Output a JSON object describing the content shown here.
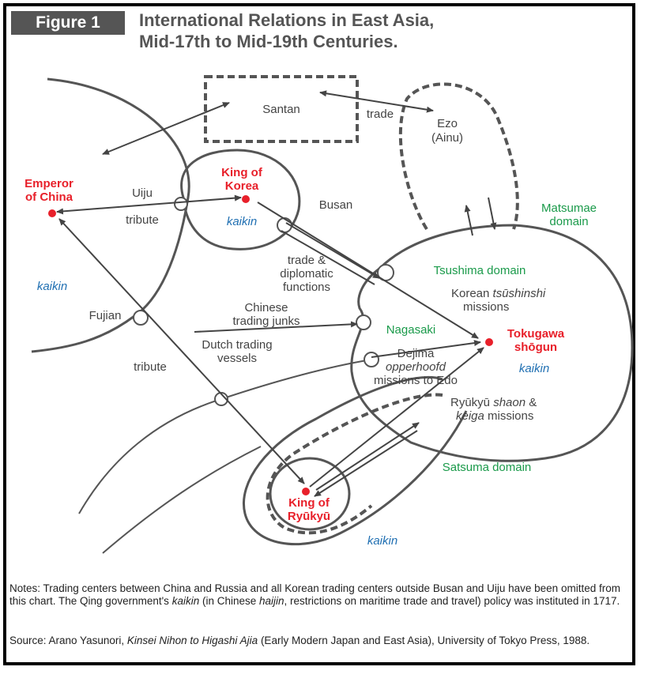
{
  "figure": {
    "badge": "Figure 1",
    "title_line1": "International Relations in East Asia,",
    "title_line2": "Mid-17th to Mid-19th Centuries."
  },
  "places": {
    "santan": "Santan",
    "ezo_line1": "Ezo",
    "ezo_line2": "(Ainu)",
    "emperor_line1": "Emperor",
    "emperor_line2": "of China",
    "king_korea_line1": "King of",
    "king_korea_line2": "Korea",
    "tokugawa_line1": "Tokugawa",
    "tokugawa_line2": "shōgun",
    "king_ryukyu_line1": "King of",
    "king_ryukyu_line2": "Ryūkyū",
    "uiju": "Uiju",
    "busan": "Busan",
    "fujian": "Fujian",
    "nagasaki": "Nagasaki"
  },
  "domains": {
    "matsumae_line1": "Matsumae",
    "matsumae_line2": "domain",
    "tsushima": "Tsushima domain",
    "satsuma": "Satsuma domain"
  },
  "kaikin": {
    "korea": "kaikin",
    "china": "kaikin",
    "japan": "kaikin",
    "ryukyu": "kaikin"
  },
  "flows": {
    "trade": "trade",
    "tribute_korea": "tribute",
    "tribute_ryukyu": "tribute",
    "trade_dipl_line1": "trade &",
    "trade_dipl_line2": "diplomatic",
    "trade_dipl_line3": "functions",
    "chinese_junks_line1": "Chinese",
    "chinese_junks_line2": "trading junks",
    "dutch_line1": "Dutch trading",
    "dutch_line2": "vessels",
    "korean_missions_line1_a": "Korean ",
    "korean_missions_line1_b": "tsūshinshi",
    "korean_missions_line2": "missions",
    "dejima_line1": "Dejima",
    "dejima_line2": "opperhoofd",
    "dejima_line3": "missions to Edo",
    "ryukyu_missions_line1_a": "Ryūkyū ",
    "ryukyu_missions_line1_b": "shaon",
    "ryukyu_missions_line1_c": " &",
    "ryukyu_missions_line2_a": "keiga",
    "ryukyu_missions_line2_b": " missions"
  },
  "notes": {
    "p1": "Notes: Trading centers between China and Russia and all Korean trading centers outside Busan and Uiju have been omitted from this chart. The Qing government's ",
    "p1_italic": "kaikin",
    "p2": " (in Chinese ",
    "p2_italic": "haijin",
    "p3": ", restrictions on maritime trade and travel) policy was instituted in 1717."
  },
  "source": {
    "s1": "Source: Arano Yasunori, ",
    "s1_italic": "Kinsei Nihon to Higashi Ajia",
    "s2": " (Early Modern Japan and East Asia), University of Tokyo Press, 1988."
  },
  "colors": {
    "red": "#e8202a",
    "green": "#1a9a4a",
    "blue": "#1f6fb2",
    "line": "#555555"
  }
}
